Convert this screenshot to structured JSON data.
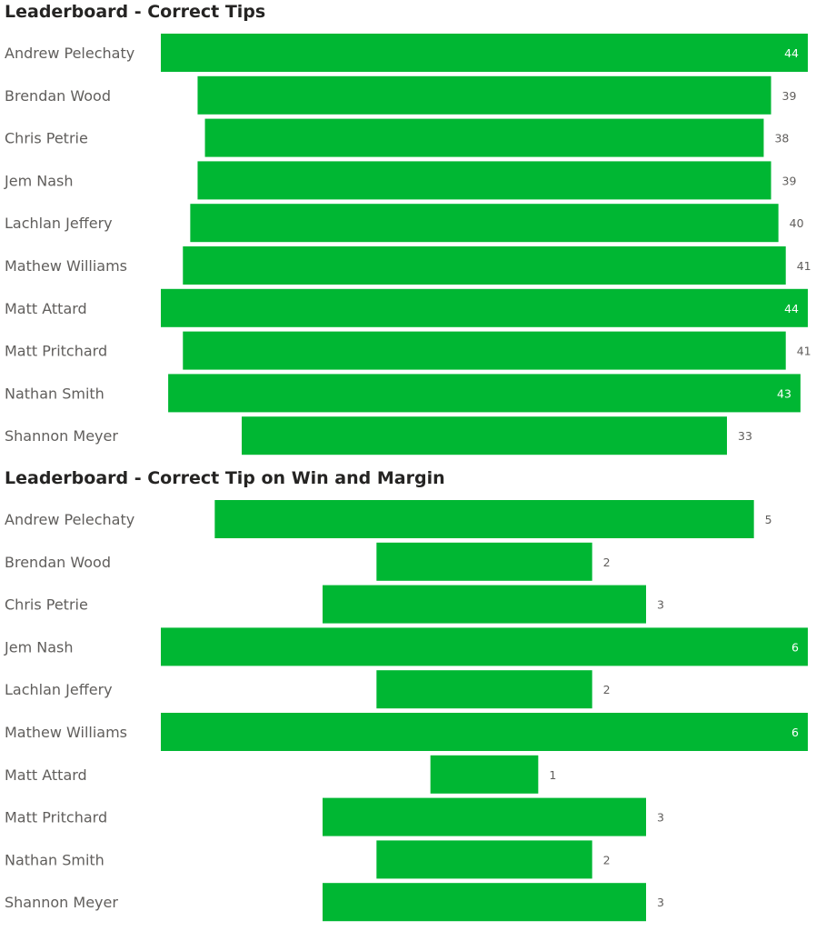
{
  "colors": {
    "bar": "#00B733",
    "label_text": "#605e5c",
    "title_text": "#252423",
    "value_inside": "#ffffff",
    "value_outside": "#605e5c"
  },
  "chart_data": [
    {
      "type": "bar",
      "orientation": "horizontal",
      "style": "funnel",
      "title": "Leaderboard - Correct Tips",
      "categories": [
        "Andrew Pelechaty",
        "Brendan Wood",
        "Chris Petrie",
        "Jem Nash",
        "Lachlan Jeffery",
        "Mathew Williams",
        "Matt Attard",
        "Matt Pritchard",
        "Nathan Smith",
        "Shannon Meyer"
      ],
      "values": [
        44,
        39,
        38,
        39,
        40,
        41,
        44,
        41,
        43,
        33
      ],
      "max": 44
    },
    {
      "type": "bar",
      "orientation": "horizontal",
      "style": "funnel",
      "title": "Leaderboard - Correct Tip on Win and Margin",
      "categories": [
        "Andrew Pelechaty",
        "Brendan Wood",
        "Chris Petrie",
        "Jem Nash",
        "Lachlan Jeffery",
        "Mathew Williams",
        "Matt Attard",
        "Matt Pritchard",
        "Nathan Smith",
        "Shannon Meyer"
      ],
      "values": [
        5,
        2,
        3,
        6,
        2,
        6,
        1,
        3,
        2,
        3
      ],
      "max": 6
    }
  ]
}
